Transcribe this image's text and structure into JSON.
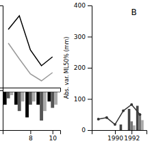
{
  "chart_data": [
    {
      "type": "line",
      "x": [
        6,
        7,
        8,
        9,
        10
      ],
      "series": [
        {
          "color": "black",
          "values": [
            1.15,
            1.35,
            0.85,
            0.62,
            0.75
          ]
        },
        {
          "color": "#999999",
          "values": [
            0.95,
            0.72,
            0.5,
            0.4,
            0.52
          ]
        }
      ],
      "xlim": [
        5.5,
        10.7
      ],
      "ylim": [
        0.3,
        1.5
      ],
      "tick_labels": false
    },
    {
      "type": "bar",
      "x": [
        6,
        7,
        8,
        9,
        10
      ],
      "series": [
        {
          "color": "black",
          "values": [
            -0.04,
            -0.04,
            -0.08,
            -0.04,
            -0.03
          ]
        },
        {
          "color": "#555555",
          "values": [
            -0.02,
            -0.06,
            -0.04,
            -0.09,
            -0.05
          ]
        },
        {
          "color": "#aaaaaa",
          "values": [
            -0.01,
            -0.03,
            -0.03,
            -0.06,
            -0.04
          ]
        }
      ],
      "xlim": [
        5.5,
        10.7
      ],
      "ylim": [
        -0.12,
        0.005
      ],
      "xticks": [
        8,
        10
      ],
      "tick_labels": "x"
    },
    {
      "type": "bar",
      "x": [
        1988,
        1989,
        1990,
        1991,
        1992,
        1993
      ],
      "series": [
        {
          "color": "#444444",
          "values": [
            0,
            0,
            0,
            18,
            68,
            78
          ]
        },
        {
          "color": "#777777",
          "values": [
            0,
            0,
            0,
            0,
            28,
            52
          ]
        },
        {
          "color": "#aaaaaa",
          "values": [
            0,
            0,
            0,
            0,
            15,
            32
          ]
        },
        {
          "type": "line",
          "color": "#333333",
          "marker": "circle",
          "values": [
            35,
            40,
            18,
            62,
            82,
            50
          ]
        }
      ],
      "xlim": [
        1987.2,
        1993.8
      ],
      "ylim": [
        0,
        400
      ],
      "xticks": [
        1990,
        1992
      ],
      "yticks": [
        0,
        100,
        200,
        300,
        400
      ],
      "annotation": "B",
      "ylabel": "Abs. var. ML50% (mm)"
    }
  ]
}
